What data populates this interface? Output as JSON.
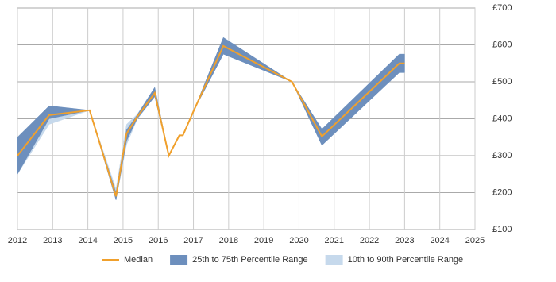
{
  "chart_data": {
    "type": "band-line",
    "x": [
      2012.0,
      2012.9,
      2014.05,
      2014.8,
      2015.1,
      2015.4,
      2015.9,
      2016.3,
      2016.6,
      2016.7,
      2017.0,
      2017.85,
      2019.8,
      2020.65,
      2022.85,
      2023.0
    ],
    "series": [
      {
        "name": "10th to 90th Percentile Range",
        "color": "#c6d9ec",
        "low": [
          250,
          385,
          423,
          180,
          330,
          398,
          460,
          300,
          355,
          355,
          420,
          575,
          500,
          328,
          525,
          525
        ],
        "high": [
          350,
          435,
          423,
          210,
          385,
          412,
          485,
          300,
          355,
          355,
          420,
          620,
          500,
          372,
          575,
          575
        ]
      },
      {
        "name": "25th to 75th Percentile Range",
        "color": "#6d8fbd",
        "low": [
          250,
          400,
          423,
          180,
          340,
          400,
          460,
          300,
          355,
          355,
          420,
          575,
          500,
          328,
          525,
          525
        ],
        "high": [
          350,
          435,
          423,
          200,
          370,
          410,
          485,
          300,
          355,
          355,
          420,
          620,
          500,
          372,
          575,
          575
        ]
      },
      {
        "name": "Median",
        "color": "#f0a02c",
        "values": [
          300,
          410,
          423,
          190,
          360,
          405,
          470,
          300,
          355,
          355,
          420,
          597,
          500,
          352,
          550,
          550
        ]
      }
    ],
    "xlim": [
      2012,
      2025
    ],
    "xticks": [
      2012,
      2013,
      2014,
      2015,
      2016,
      2017,
      2018,
      2019,
      2020,
      2021,
      2022,
      2023,
      2024,
      2025
    ],
    "ylim": [
      100,
      700
    ],
    "yticks": [
      {
        "value": 100,
        "label": "£100"
      },
      {
        "value": 200,
        "label": "£200"
      },
      {
        "value": 300,
        "label": "£300"
      },
      {
        "value": 400,
        "label": "£400"
      },
      {
        "value": 500,
        "label": "£500"
      },
      {
        "value": 600,
        "label": "£600"
      },
      {
        "value": 700,
        "label": "£700"
      }
    ],
    "grid": true
  }
}
